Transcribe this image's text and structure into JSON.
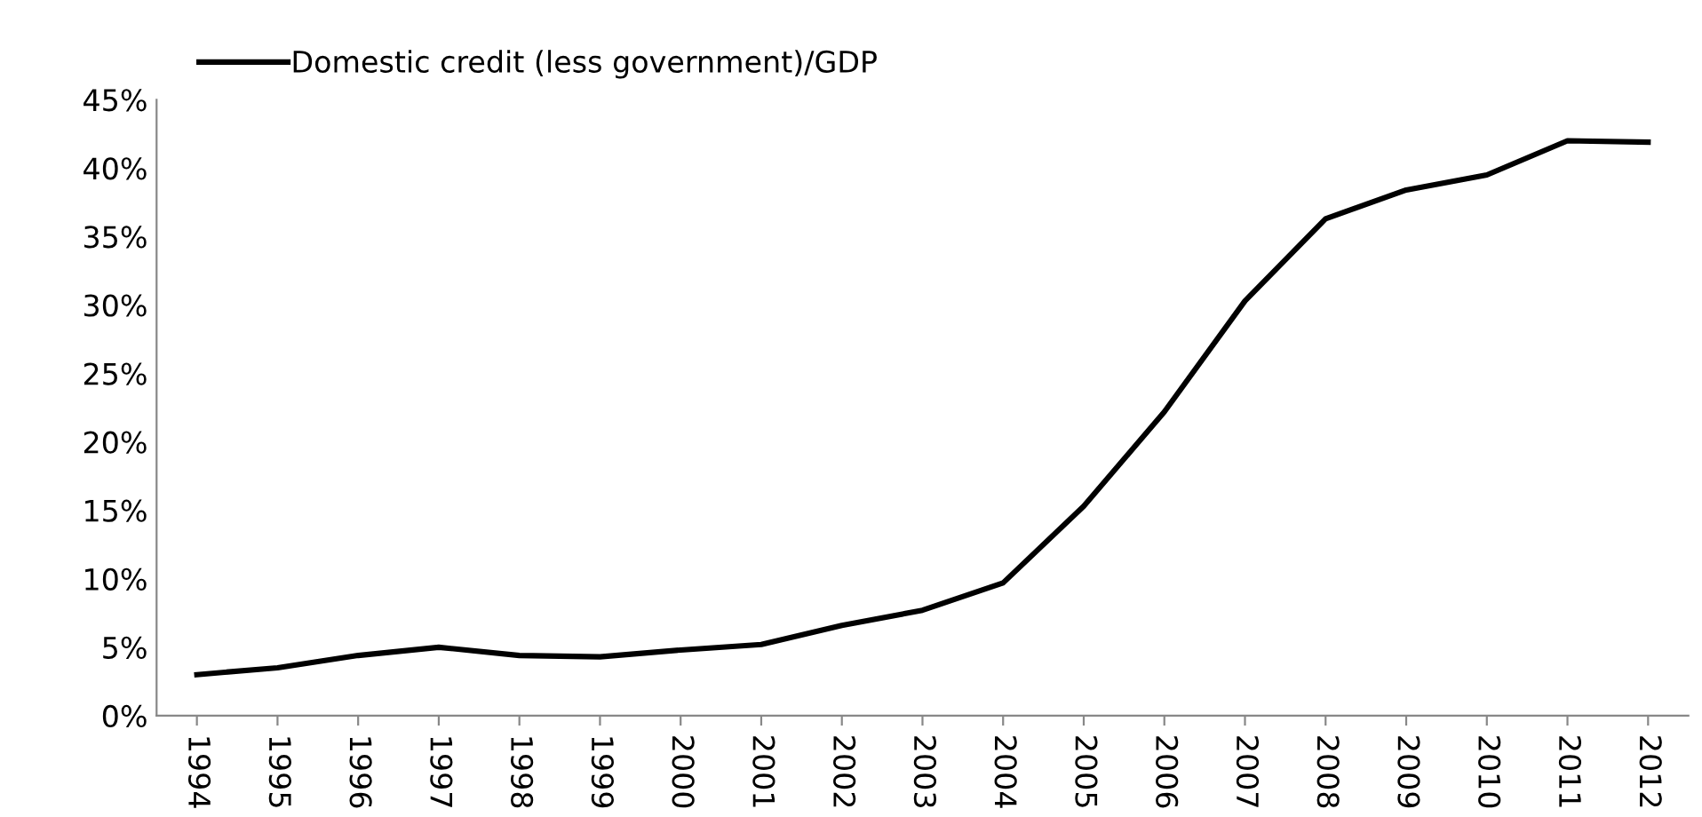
{
  "chart_data": {
    "type": "line",
    "categories": [
      "1994",
      "1995",
      "1996",
      "1997",
      "1998",
      "1999",
      "2000",
      "2001",
      "2002",
      "2003",
      "2004",
      "2005",
      "2006",
      "2007",
      "2008",
      "2009",
      "2010",
      "2011",
      "2012"
    ],
    "series": [
      {
        "name": "Domestic credit (less government)/GDP",
        "color": "#000000",
        "values": [
          3.0,
          3.5,
          4.4,
          5.0,
          4.4,
          4.3,
          4.8,
          5.2,
          6.6,
          7.7,
          9.7,
          15.3,
          22.2,
          30.3,
          36.3,
          38.4,
          39.5,
          42.0,
          41.9
        ]
      }
    ],
    "ylim": [
      0,
      45
    ],
    "yticks": [
      {
        "value": 0,
        "label": "0%"
      },
      {
        "value": 5,
        "label": "5%"
      },
      {
        "value": 10,
        "label": "10%"
      },
      {
        "value": 15,
        "label": "15%"
      },
      {
        "value": 20,
        "label": "20%"
      },
      {
        "value": 25,
        "label": "25%"
      },
      {
        "value": 30,
        "label": "30%"
      },
      {
        "value": 35,
        "label": "35%"
      },
      {
        "value": 40,
        "label": "40%"
      },
      {
        "value": 45,
        "label": "45%"
      }
    ],
    "grid": false,
    "legend": "top left",
    "marker": "none",
    "line_style": "solid"
  }
}
